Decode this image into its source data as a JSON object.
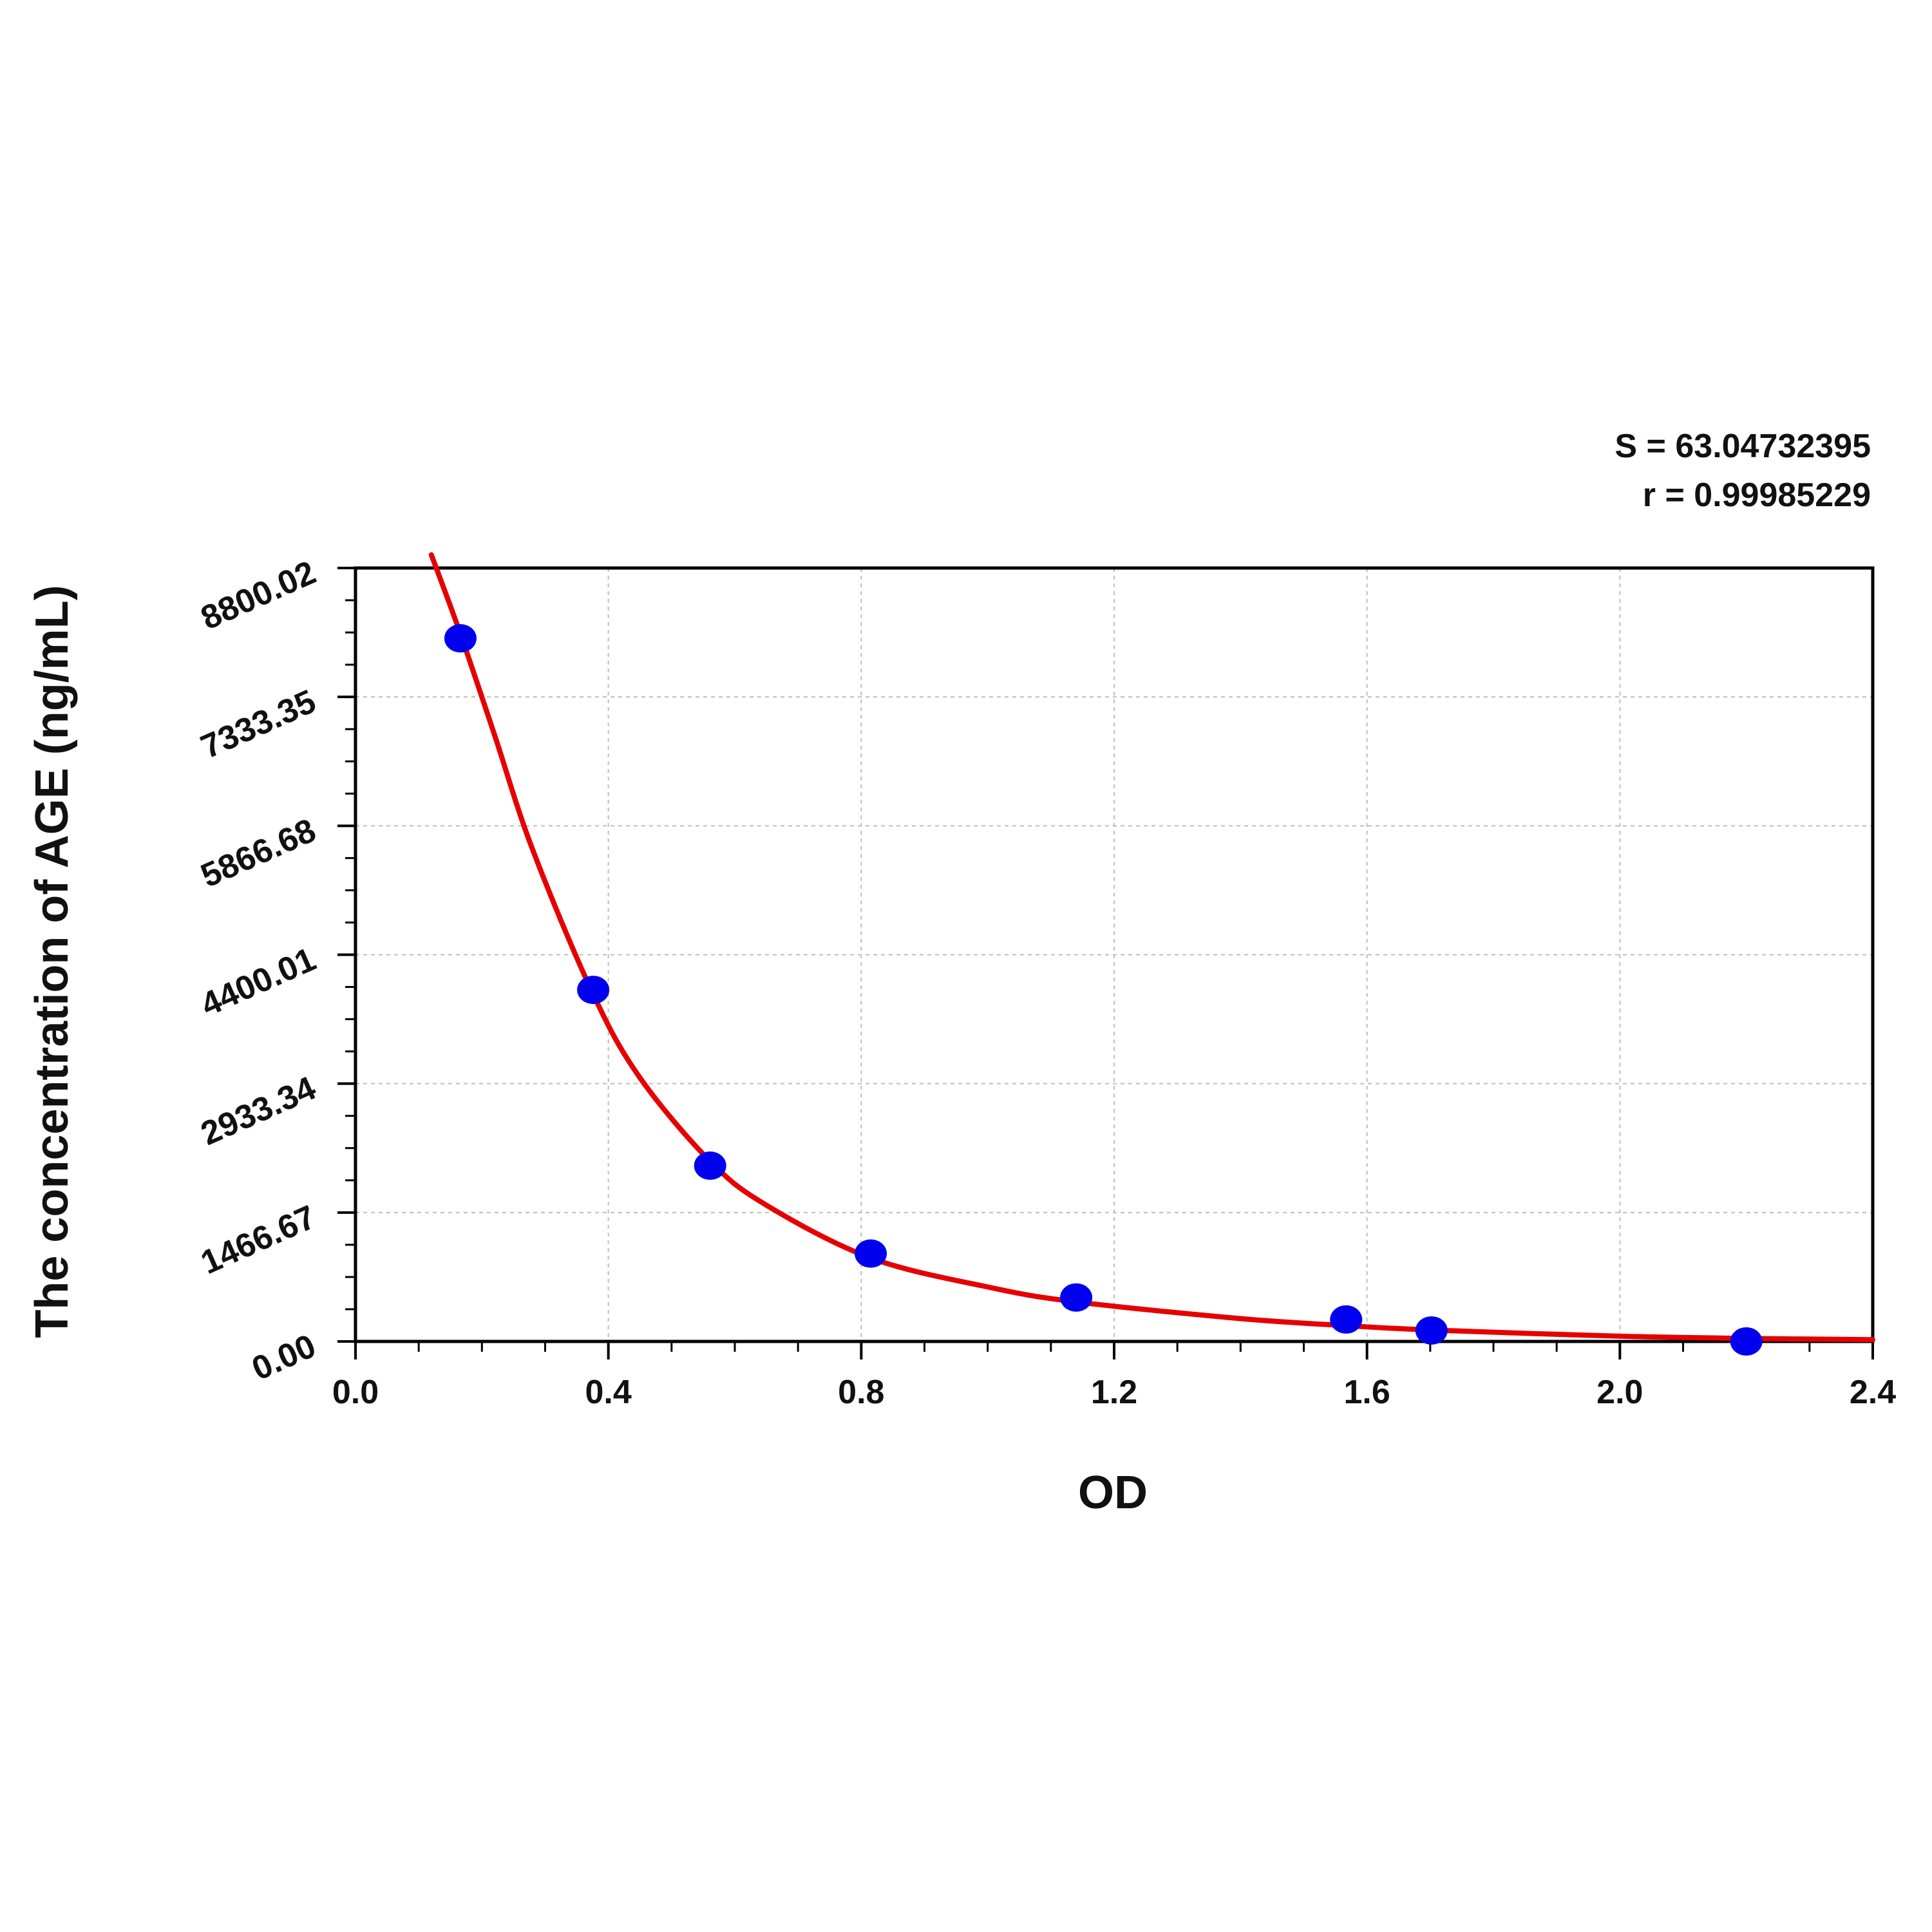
{
  "chart_data": {
    "type": "scatter",
    "xlabel": "OD",
    "ylabel": "The concentration of AGE (ng/mL)",
    "xlim": [
      0,
      2.4
    ],
    "ylim": [
      0,
      8800.02
    ],
    "x_ticks": [
      "0.0",
      "0.4",
      "0.8",
      "1.2",
      "1.6",
      "2.0",
      "2.4"
    ],
    "y_ticks": [
      "0.00",
      "1466.67",
      "2933.34",
      "4400.01",
      "5866.68",
      "7333.35",
      "8800.02"
    ],
    "grid": true,
    "stats": {
      "s_line": "S = 63.04732395",
      "r_line": "r = 0.99985229"
    },
    "points": [
      {
        "x": 0.166,
        "y": 8000
      },
      {
        "x": 0.376,
        "y": 4000
      },
      {
        "x": 0.561,
        "y": 2000
      },
      {
        "x": 0.815,
        "y": 1000
      },
      {
        "x": 1.14,
        "y": 500
      },
      {
        "x": 1.567,
        "y": 250
      },
      {
        "x": 1.702,
        "y": 125
      },
      {
        "x": 2.2,
        "y": 0
      }
    ],
    "curve": [
      {
        "x": 0.12,
        "y": 8950
      },
      {
        "x": 0.166,
        "y": 8050
      },
      {
        "x": 0.22,
        "y": 6900
      },
      {
        "x": 0.28,
        "y": 5600
      },
      {
        "x": 0.376,
        "y": 3950
      },
      {
        "x": 0.45,
        "y": 3000
      },
      {
        "x": 0.561,
        "y": 2050
      },
      {
        "x": 0.65,
        "y": 1550
      },
      {
        "x": 0.815,
        "y": 950
      },
      {
        "x": 1.0,
        "y": 620
      },
      {
        "x": 1.14,
        "y": 450
      },
      {
        "x": 1.4,
        "y": 260
      },
      {
        "x": 1.567,
        "y": 180
      },
      {
        "x": 1.702,
        "y": 130
      },
      {
        "x": 2.0,
        "y": 60
      },
      {
        "x": 2.2,
        "y": 35
      },
      {
        "x": 2.4,
        "y": 20
      }
    ],
    "colors": {
      "points": "#0000ee",
      "curve": "#e60000",
      "axis": "#000000",
      "grid": "#bdbdbd"
    }
  }
}
